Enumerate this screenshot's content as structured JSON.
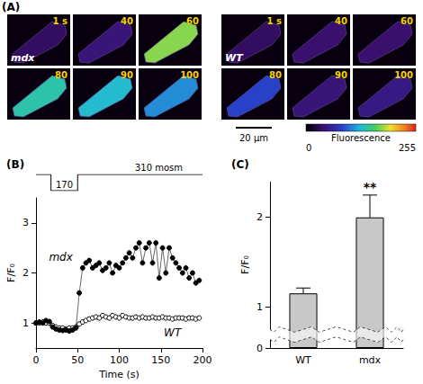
{
  "panel_A": {
    "panel": "(A)",
    "groups": [
      {
        "label": "mdx",
        "frames": [
          {
            "time": "1 s",
            "intensity": 35
          },
          {
            "time": "40",
            "intensity": 45
          },
          {
            "time": "60",
            "intensity": 175
          },
          {
            "time": "80",
            "intensity": 140
          },
          {
            "time": "90",
            "intensity": 130
          },
          {
            "time": "100",
            "intensity": 110
          }
        ]
      },
      {
        "label": "WT",
        "frames": [
          {
            "time": "1 s",
            "intensity": 35
          },
          {
            "time": "40",
            "intensity": 40
          },
          {
            "time": "60",
            "intensity": 40
          },
          {
            "time": "80",
            "intensity": 85
          },
          {
            "time": "90",
            "intensity": 45
          },
          {
            "time": "100",
            "intensity": 50
          }
        ]
      }
    ],
    "colorbar": {
      "title": "Fluorescence",
      "range": [
        0,
        255
      ]
    },
    "scale_bar": "20 μm"
  },
  "chart_data": [
    {
      "type": "line",
      "panel": "(B)",
      "xlabel": "Time (s)",
      "ylabel": "F/F₀",
      "xlim": [
        0,
        200
      ],
      "xticks": [
        0,
        50,
        100,
        150,
        200
      ],
      "ylim": [
        0.5,
        3.5
      ],
      "yticks": [
        1,
        2,
        3
      ],
      "x": [
        0,
        4,
        8,
        12,
        16,
        20,
        24,
        28,
        32,
        36,
        40,
        44,
        48,
        52,
        56,
        60,
        64,
        68,
        72,
        76,
        80,
        84,
        88,
        92,
        96,
        100,
        104,
        108,
        112,
        116,
        120,
        124,
        128,
        132,
        136,
        140,
        144,
        148,
        152,
        156,
        160,
        164,
        168,
        172,
        176,
        180,
        184,
        188,
        192,
        196
      ],
      "series": [
        {
          "name": "mdx",
          "color": "#000000",
          "marker": "circle",
          "line_style": "solid",
          "values": [
            1.0,
            1.02,
            1.0,
            1.05,
            1.03,
            0.92,
            0.88,
            0.86,
            0.85,
            0.86,
            0.84,
            0.86,
            0.9,
            1.6,
            2.1,
            2.2,
            2.25,
            2.1,
            2.15,
            2.2,
            2.05,
            2.1,
            2.2,
            2.0,
            2.15,
            2.1,
            2.2,
            2.3,
            2.4,
            2.3,
            2.5,
            2.6,
            2.2,
            2.5,
            2.6,
            2.2,
            2.6,
            1.9,
            2.5,
            2.0,
            2.5,
            2.3,
            2.2,
            2.1,
            2.0,
            2.1,
            1.9,
            2.0,
            1.8,
            1.85
          ]
        },
        {
          "name": "WT",
          "color": "#000000",
          "marker": "open_circle",
          "line_style": "none",
          "values": [
            1.0,
            1.0,
            1.02,
            1.0,
            1.0,
            0.95,
            0.92,
            0.9,
            0.9,
            0.88,
            0.9,
            0.9,
            0.92,
            0.98,
            1.02,
            1.05,
            1.08,
            1.1,
            1.12,
            1.1,
            1.15,
            1.12,
            1.1,
            1.15,
            1.12,
            1.1,
            1.15,
            1.12,
            1.1,
            1.1,
            1.12,
            1.1,
            1.12,
            1.1,
            1.1,
            1.12,
            1.1,
            1.1,
            1.12,
            1.1,
            1.1,
            1.08,
            1.1,
            1.1,
            1.1,
            1.08,
            1.1,
            1.1,
            1.08,
            1.1
          ]
        }
      ],
      "protocol": {
        "x": [
          0,
          18,
          18,
          50,
          50,
          200
        ],
        "values": [
          310,
          310,
          170,
          170,
          310,
          310
        ],
        "labels": [
          "170",
          "310 mosm"
        ]
      }
    },
    {
      "type": "bar",
      "panel": "(C)",
      "ylabel": "F/F₀",
      "categories": [
        "WT",
        "mdx"
      ],
      "values": [
        1.15,
        2.0
      ],
      "errors": [
        0.06,
        0.25
      ],
      "color": "#c8c8c8",
      "ylim": [
        0,
        2.4
      ],
      "yticks": [
        0,
        1,
        2
      ],
      "ybreak": [
        0.1,
        0.75
      ],
      "annotations": [
        {
          "category": "mdx",
          "text": "**"
        }
      ]
    }
  ]
}
